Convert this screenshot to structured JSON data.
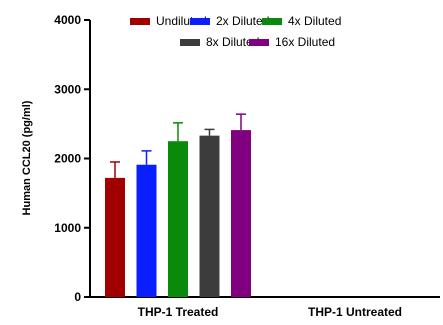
{
  "chart_data": {
    "type": "bar",
    "title": "",
    "xlabel": "",
    "ylabel": "Human CCL20 (pg/ml)",
    "ylim": [
      0,
      4000
    ],
    "yticks": [
      0,
      1000,
      2000,
      3000,
      4000
    ],
    "grid": false,
    "legend_position": "top",
    "categories": [
      "THP-1 Treated",
      "THP-1 Untreated"
    ],
    "series": [
      {
        "name": "Undiluted",
        "color": "#a00000",
        "values": [
          1720,
          0
        ],
        "error": [
          230,
          0
        ]
      },
      {
        "name": "2x Diluted",
        "color": "#0a1fff",
        "values": [
          1910,
          0
        ],
        "error": [
          200,
          0
        ]
      },
      {
        "name": "4x Diluted",
        "color": "#0a8a0a",
        "values": [
          2250,
          0
        ],
        "error": [
          265,
          0
        ]
      },
      {
        "name": "8x Diluted",
        "color": "#3c3c3c",
        "values": [
          2330,
          0
        ],
        "error": [
          90,
          0
        ]
      },
      {
        "name": "16x Diluted",
        "color": "#800080",
        "values": [
          2410,
          0
        ],
        "error": [
          230,
          0
        ]
      }
    ]
  }
}
